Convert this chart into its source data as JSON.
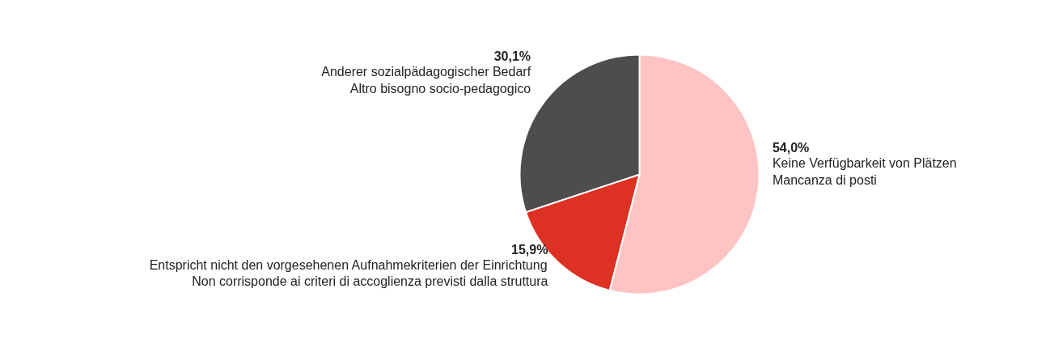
{
  "chart_data": {
    "type": "pie",
    "categories": [
      "Keine Verfügbarkeit von Plätzen\nMancanza di posti",
      "Entspricht nicht den vorgesehenen Aufnahmekriterien der Einrichtung\nNon corrisponde ai criteri di accoglienza previsti dalla struttura",
      "Anderer sozialpädagogischer Bedarf\nAltro bisogno socio-pedagogico"
    ],
    "values": [
      54.0,
      15.9,
      30.1
    ],
    "colors": [
      "#fec4c4",
      "#dd3124",
      "#4d4d4d"
    ],
    "value_labels": [
      "54,0%",
      "15,9%",
      "30,1%"
    ]
  }
}
